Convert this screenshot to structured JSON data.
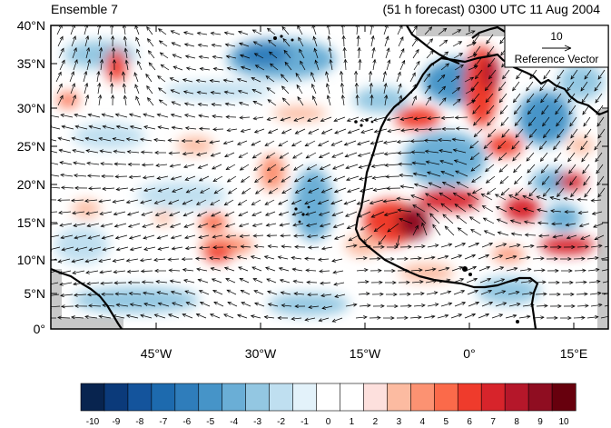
{
  "header": {
    "title_left": "Ensemble 7",
    "title_right": "(51 h forecast) 0300 UTC 11 Aug 2004"
  },
  "map": {
    "lon_range": [
      -62,
      18
    ],
    "lat_range": [
      0,
      40
    ],
    "lat_ticks": [
      "40°N",
      "35°N",
      "30°N",
      "25°N",
      "20°N",
      "15°N",
      "10°N",
      "5°N",
      "0°"
    ],
    "lon_ticks": [
      "45°W",
      "30°W",
      "15°W",
      "0°",
      "15°E"
    ],
    "colors": {
      "land_outline": "#000000",
      "missing": "#c8c8c8",
      "vector": "#000000"
    }
  },
  "reference_vector": {
    "magnitude": "10",
    "label": "Reference Vector"
  },
  "colorbar": {
    "labels": [
      "-10",
      "-9",
      "-8",
      "-7",
      "-6",
      "-5",
      "-4",
      "-3",
      "-2",
      "-1",
      "0",
      "1",
      "2",
      "3",
      "4",
      "5",
      "6",
      "7",
      "8",
      "9",
      "10"
    ],
    "colors": [
      "#08244f",
      "#0b3a7a",
      "#14549c",
      "#1d6aae",
      "#2f7dbb",
      "#4694c8",
      "#6aaed6",
      "#93c7e2",
      "#bfdff0",
      "#e3f2fa",
      "#ffffff",
      "#ffffff",
      "#fde0dd",
      "#fcbba1",
      "#fc9272",
      "#fb6a4a",
      "#ef3b2c",
      "#d7242b",
      "#b5172a",
      "#8f0d21",
      "#67000d"
    ]
  }
}
